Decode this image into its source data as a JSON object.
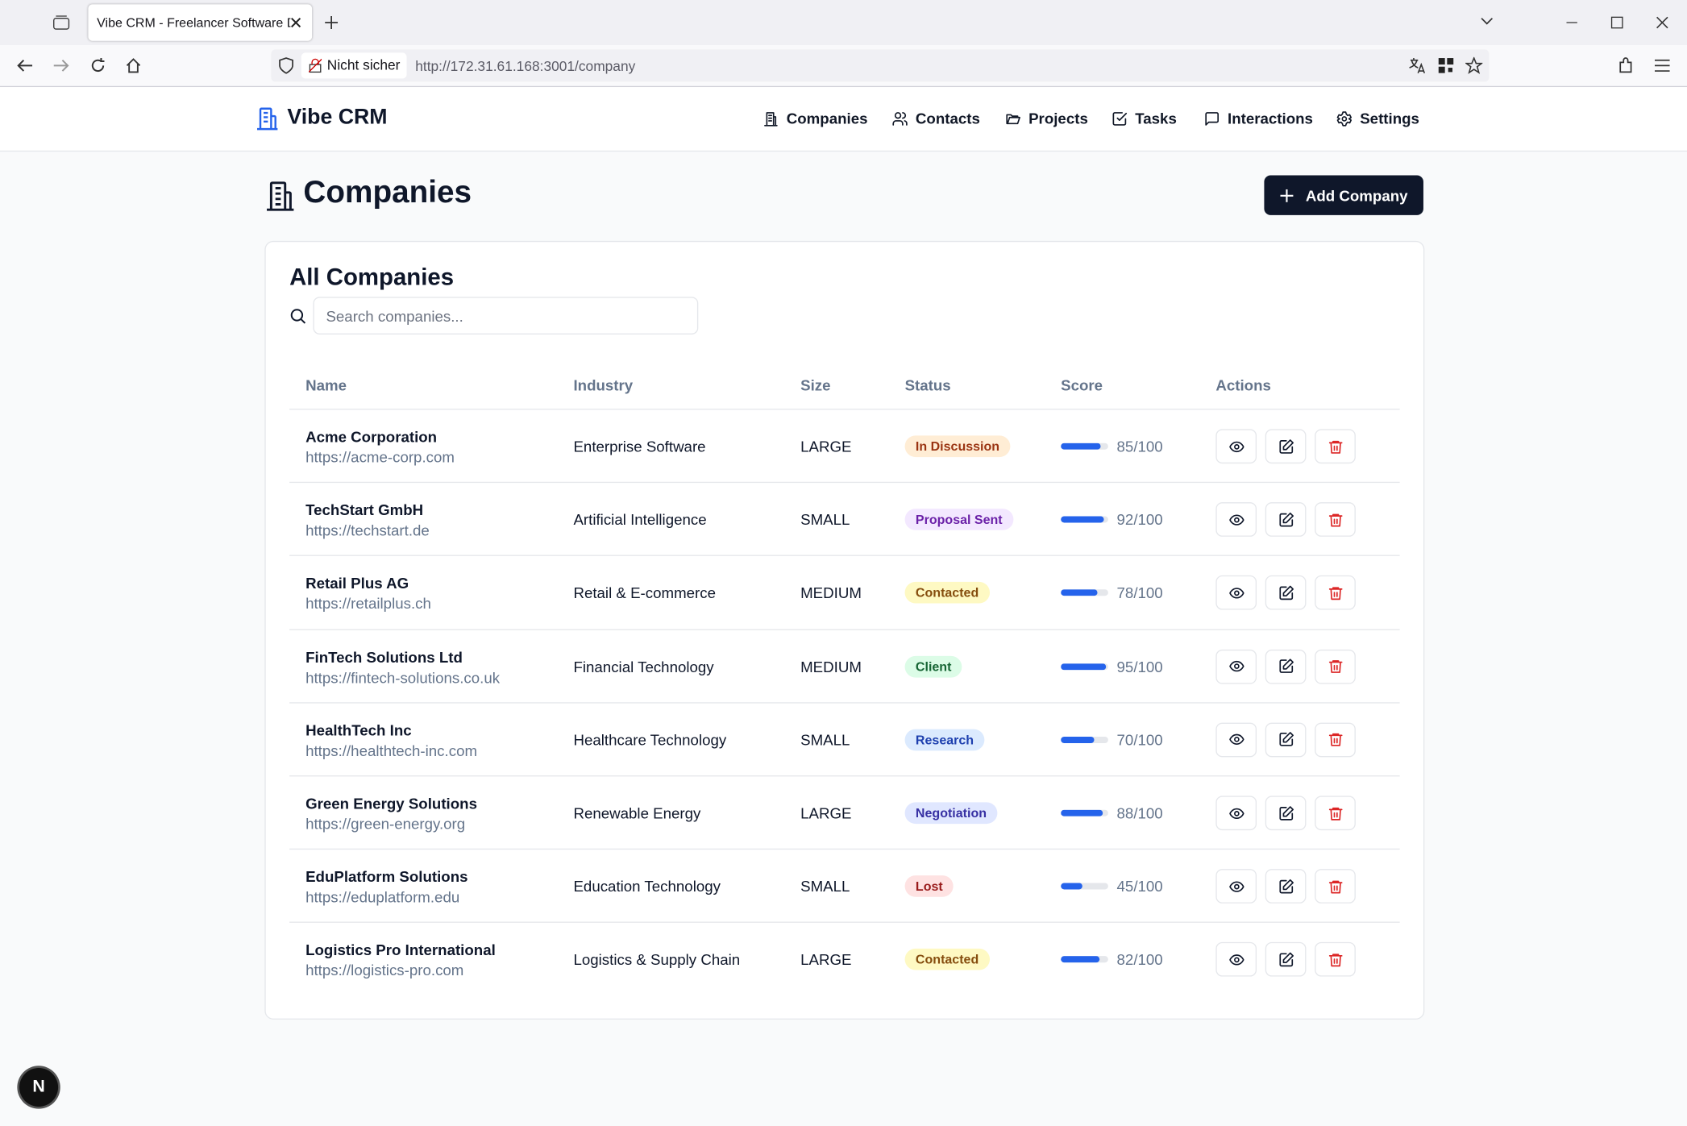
{
  "browser": {
    "tab_title": "Vibe CRM - Freelancer Software De",
    "security": "Nicht sicher",
    "url": "http://172.31.61.168:3001/company"
  },
  "header": {
    "brand": "Vibe CRM",
    "nav": [
      "Companies",
      "Contacts",
      "Projects",
      "Tasks",
      "Interactions",
      "Settings"
    ]
  },
  "page": {
    "title": "Companies",
    "add_button": "Add Company"
  },
  "card": {
    "title": "All Companies",
    "search_placeholder": "Search companies..."
  },
  "table": {
    "columns": [
      "Name",
      "Industry",
      "Size",
      "Status",
      "Score",
      "Actions"
    ],
    "score_lim": [
      0,
      100
    ],
    "rows": [
      {
        "name": "Acme Corporation",
        "url": "https://acme-corp.com",
        "industry": "Enterprise Software",
        "size": "LARGE",
        "status": "In Discussion",
        "status_bg": "#ffedd5",
        "status_fg": "#9a3412",
        "score": {
          "value": 85,
          "label": "85/100"
        }
      },
      {
        "name": "TechStart GmbH",
        "url": "https://techstart.de",
        "industry": "Artificial Intelligence",
        "size": "SMALL",
        "status": "Proposal Sent",
        "status_bg": "#f3e8ff",
        "status_fg": "#6b21a8",
        "score": {
          "value": 92,
          "label": "92/100"
        }
      },
      {
        "name": "Retail Plus AG",
        "url": "https://retailplus.ch",
        "industry": "Retail & E-commerce",
        "size": "MEDIUM",
        "status": "Contacted",
        "status_bg": "#fef9c3",
        "status_fg": "#854d0e",
        "score": {
          "value": 78,
          "label": "78/100"
        }
      },
      {
        "name": "FinTech Solutions Ltd",
        "url": "https://fintech-solutions.co.uk",
        "industry": "Financial Technology",
        "size": "MEDIUM",
        "status": "Client",
        "status_bg": "#dcfce7",
        "status_fg": "#166534",
        "score": {
          "value": 95,
          "label": "95/100"
        }
      },
      {
        "name": "HealthTech Inc",
        "url": "https://healthtech-inc.com",
        "industry": "Healthcare Technology",
        "size": "SMALL",
        "status": "Research",
        "status_bg": "#dbeafe",
        "status_fg": "#1e40af",
        "score": {
          "value": 70,
          "label": "70/100"
        }
      },
      {
        "name": "Green Energy Solutions",
        "url": "https://green-energy.org",
        "industry": "Renewable Energy",
        "size": "LARGE",
        "status": "Negotiation",
        "status_bg": "#e0e7ff",
        "status_fg": "#3730a3",
        "score": {
          "value": 88,
          "label": "88/100"
        }
      },
      {
        "name": "EduPlatform Solutions",
        "url": "https://eduplatform.edu",
        "industry": "Education Technology",
        "size": "SMALL",
        "status": "Lost",
        "status_bg": "#fee2e2",
        "status_fg": "#991b1b",
        "score": {
          "value": 45,
          "label": "45/100"
        }
      },
      {
        "name": "Logistics Pro International",
        "url": "https://logistics-pro.com",
        "industry": "Logistics & Supply Chain",
        "size": "LARGE",
        "status": "Contacted",
        "status_bg": "#fef9c3",
        "status_fg": "#854d0e",
        "score": {
          "value": 82,
          "label": "82/100"
        }
      }
    ]
  },
  "dev_indicator": "N"
}
